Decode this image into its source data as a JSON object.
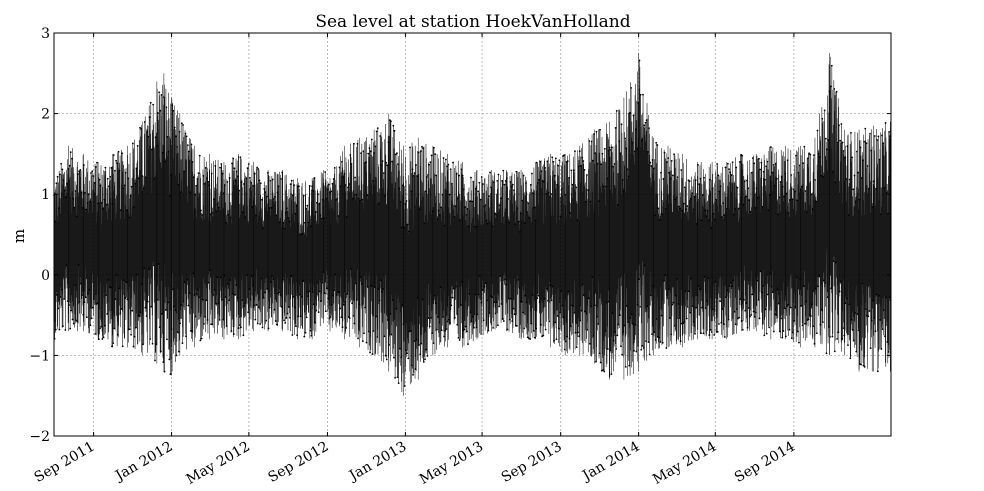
{
  "chart_data": {
    "type": "line",
    "title": "Sea level at station HoekVanHolland",
    "xlabel": "",
    "ylabel": "m",
    "ylim": [
      -2,
      3
    ],
    "yticks": [
      -2,
      -1,
      0,
      1,
      2,
      3
    ],
    "xlim": [
      "2011-07-01",
      "2015-01-31"
    ],
    "xticks": [
      {
        "date": "2011-09-01",
        "label": "Sep 2011"
      },
      {
        "date": "2012-01-01",
        "label": "Jan 2012"
      },
      {
        "date": "2012-05-01",
        "label": "May 2012"
      },
      {
        "date": "2012-09-01",
        "label": "Sep 2012"
      },
      {
        "date": "2013-01-01",
        "label": "Jan 2013"
      },
      {
        "date": "2013-05-01",
        "label": "May 2013"
      },
      {
        "date": "2013-09-01",
        "label": "Sep 2013"
      },
      {
        "date": "2014-01-01",
        "label": "Jan 2014"
      },
      {
        "date": "2014-05-01",
        "label": "May 2014"
      },
      {
        "date": "2014-09-01",
        "label": "Sep 2014"
      }
    ],
    "grid": true,
    "series": [
      {
        "line_color": "#000000",
        "x": [
          "2011-07-01",
          "2011-07-24",
          "2011-08-16",
          "2011-09-08",
          "2011-10-01",
          "2011-10-24",
          "2011-11-16",
          "2011-12-09",
          "2011-12-20",
          "2012-01-01",
          "2012-01-14",
          "2012-02-06",
          "2012-02-29",
          "2012-03-23",
          "2012-04-15",
          "2012-05-08",
          "2012-05-31",
          "2012-06-23",
          "2012-07-16",
          "2012-08-08",
          "2012-08-26",
          "2012-09-05",
          "2012-09-28",
          "2012-10-21",
          "2012-11-13",
          "2012-12-06",
          "2012-12-29",
          "2013-01-21",
          "2013-02-13",
          "2013-03-08",
          "2013-03-31",
          "2013-04-23",
          "2013-05-16",
          "2013-06-08",
          "2013-07-01",
          "2013-07-24",
          "2013-08-16",
          "2013-09-08",
          "2013-10-01",
          "2013-10-24",
          "2013-11-16",
          "2013-12-09",
          "2014-01-01",
          "2014-01-24",
          "2014-02-16",
          "2014-03-11",
          "2014-04-03",
          "2014-04-26",
          "2014-05-19",
          "2014-06-11",
          "2014-07-04",
          "2014-07-27",
          "2014-08-19",
          "2014-09-11",
          "2014-10-04",
          "2014-10-27",
          "2014-11-19",
          "2014-12-12",
          "2015-01-04",
          "2015-01-30"
        ],
        "max": [
          1.2,
          1.6,
          1.5,
          1.4,
          1.5,
          1.6,
          1.9,
          2.4,
          2.5,
          2.2,
          2.0,
          1.6,
          1.5,
          1.4,
          1.5,
          1.4,
          1.3,
          1.3,
          1.2,
          1.2,
          1.3,
          1.2,
          1.6,
          1.7,
          1.8,
          2.0,
          1.6,
          1.7,
          1.6,
          1.5,
          1.4,
          1.3,
          1.3,
          1.3,
          1.3,
          1.4,
          1.5,
          1.5,
          1.6,
          1.8,
          1.9,
          2.2,
          2.75,
          1.7,
          1.6,
          1.5,
          1.4,
          1.4,
          1.4,
          1.5,
          1.5,
          1.6,
          1.6,
          1.6,
          1.7,
          2.75,
          1.8,
          1.8,
          1.85,
          1.9
        ],
        "min": [
          -0.8,
          -0.7,
          -0.7,
          -0.8,
          -0.9,
          -0.9,
          -1.0,
          -1.1,
          -1.2,
          -1.25,
          -1.0,
          -0.9,
          -0.8,
          -0.8,
          -0.8,
          -0.7,
          -0.7,
          -0.7,
          -0.8,
          -0.8,
          -0.6,
          -0.7,
          -0.8,
          -0.9,
          -1.0,
          -1.2,
          -1.5,
          -1.3,
          -1.0,
          -0.9,
          -0.9,
          -0.8,
          -0.7,
          -0.7,
          -0.8,
          -0.8,
          -0.9,
          -1.0,
          -1.0,
          -1.1,
          -1.3,
          -1.3,
          -1.2,
          -1.0,
          -0.9,
          -0.9,
          -0.8,
          -0.8,
          -0.8,
          -0.7,
          -0.7,
          -0.8,
          -0.8,
          -0.9,
          -0.9,
          -1.0,
          -1.0,
          -1.2,
          -1.2,
          -1.2
        ]
      }
    ]
  }
}
